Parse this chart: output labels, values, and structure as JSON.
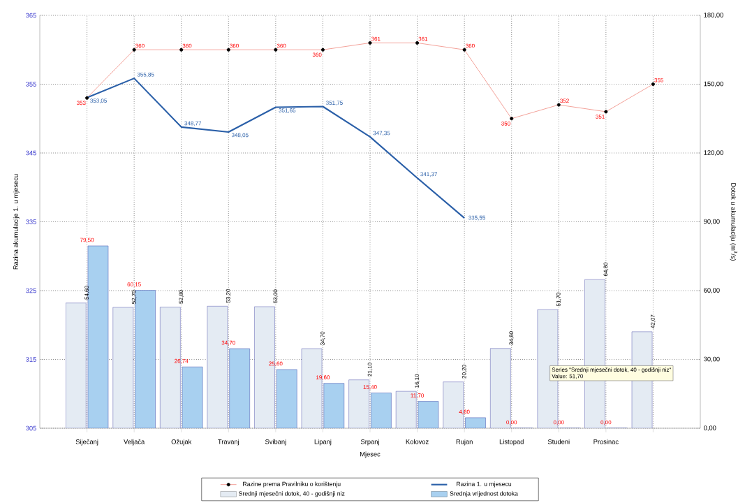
{
  "chart_data": {
    "type": "bar",
    "xlabel": "Mjesec",
    "ylabel": "Razina akumulacije 1. u mjesecu",
    "y2label": "Dotok u akumulaciju (m$^{3}$/s)",
    "categories": [
      "Siječanj",
      "Veljača",
      "Ožujak",
      "Travanj",
      "Svibanj",
      "Lipanj",
      "Srpanj",
      "Kolovoz",
      "Rujan",
      "Listopad",
      "Studeni",
      "Prosinac",
      null
    ],
    "ylim": [
      305,
      365
    ],
    "yticks": [
      305,
      315,
      325,
      335,
      345,
      355,
      365
    ],
    "y2lim": [
      0,
      180
    ],
    "y2ticks": [
      {
        "value": 0,
        "label": "0,00"
      },
      {
        "value": 30,
        "label": "30,00"
      },
      {
        "value": 60,
        "label": "60,00"
      },
      {
        "value": 90,
        "label": "90,00"
      },
      {
        "value": 120,
        "label": "120,00"
      },
      {
        "value": 150,
        "label": "150,00"
      },
      {
        "value": 180,
        "label": "180,00"
      }
    ],
    "grid": true,
    "legend": "bottom",
    "series": [
      {
        "name": "Razine prema Pravilniku o korištenju",
        "type": "line",
        "axis": "y",
        "color": "#f08a80",
        "marker": "circle",
        "values": [
          353,
          360,
          360,
          360,
          360,
          360,
          361,
          361,
          360,
          350,
          352,
          351,
          355
        ],
        "value_labels": [
          "353",
          "360",
          "360",
          "360",
          "360",
          "360",
          "361",
          "361",
          "360",
          "350",
          "352",
          "351",
          "355"
        ]
      },
      {
        "name": "Razina 1. u mjesecu",
        "type": "line",
        "axis": "y",
        "color": "#2a5fa8",
        "marker": "none",
        "values": [
          353.05,
          355.85,
          348.77,
          348.05,
          351.65,
          351.75,
          347.35,
          341.37,
          335.55,
          null,
          null,
          null,
          null
        ],
        "value_labels": [
          "353,05",
          "355,85",
          "348,77",
          "348,05",
          "351,65",
          "351,75",
          "347,35",
          "341,37",
          "335,55",
          null,
          null,
          null,
          null
        ]
      },
      {
        "name": "Srednji mjesečni dotok, 40 - godišnji niz",
        "axis": "y2",
        "color": "#e4ebf3",
        "values": [
          54.6,
          52.7,
          52.8,
          53.2,
          53.0,
          34.7,
          21.1,
          16.1,
          20.2,
          34.8,
          51.7,
          64.8,
          42.07
        ],
        "value_labels": [
          "54,60",
          "52,70",
          "52,80",
          "53,20",
          "53,00",
          "34,70",
          "21,10",
          "16,10",
          "20,20",
          "34,80",
          "51,70",
          "64,80",
          "42,07"
        ]
      },
      {
        "name": "Srednja vrijednost dotoka",
        "axis": "y2",
        "color": "#a8d0f0",
        "values": [
          79.5,
          60.15,
          26.74,
          34.7,
          25.6,
          19.6,
          15.4,
          11.7,
          4.6,
          0,
          0,
          0,
          null
        ],
        "value_labels": [
          "79,50",
          "60,15",
          "26,74",
          "34,70",
          "25,60",
          "19,60",
          "15,40",
          "11,70",
          "4,60",
          "0,00",
          "0,00",
          "0,00",
          null
        ]
      }
    ],
    "annotations": [
      "Series \"Srednji mjesečni dotok, 40 - godišnji niz\"",
      "Value: 51,70"
    ]
  }
}
